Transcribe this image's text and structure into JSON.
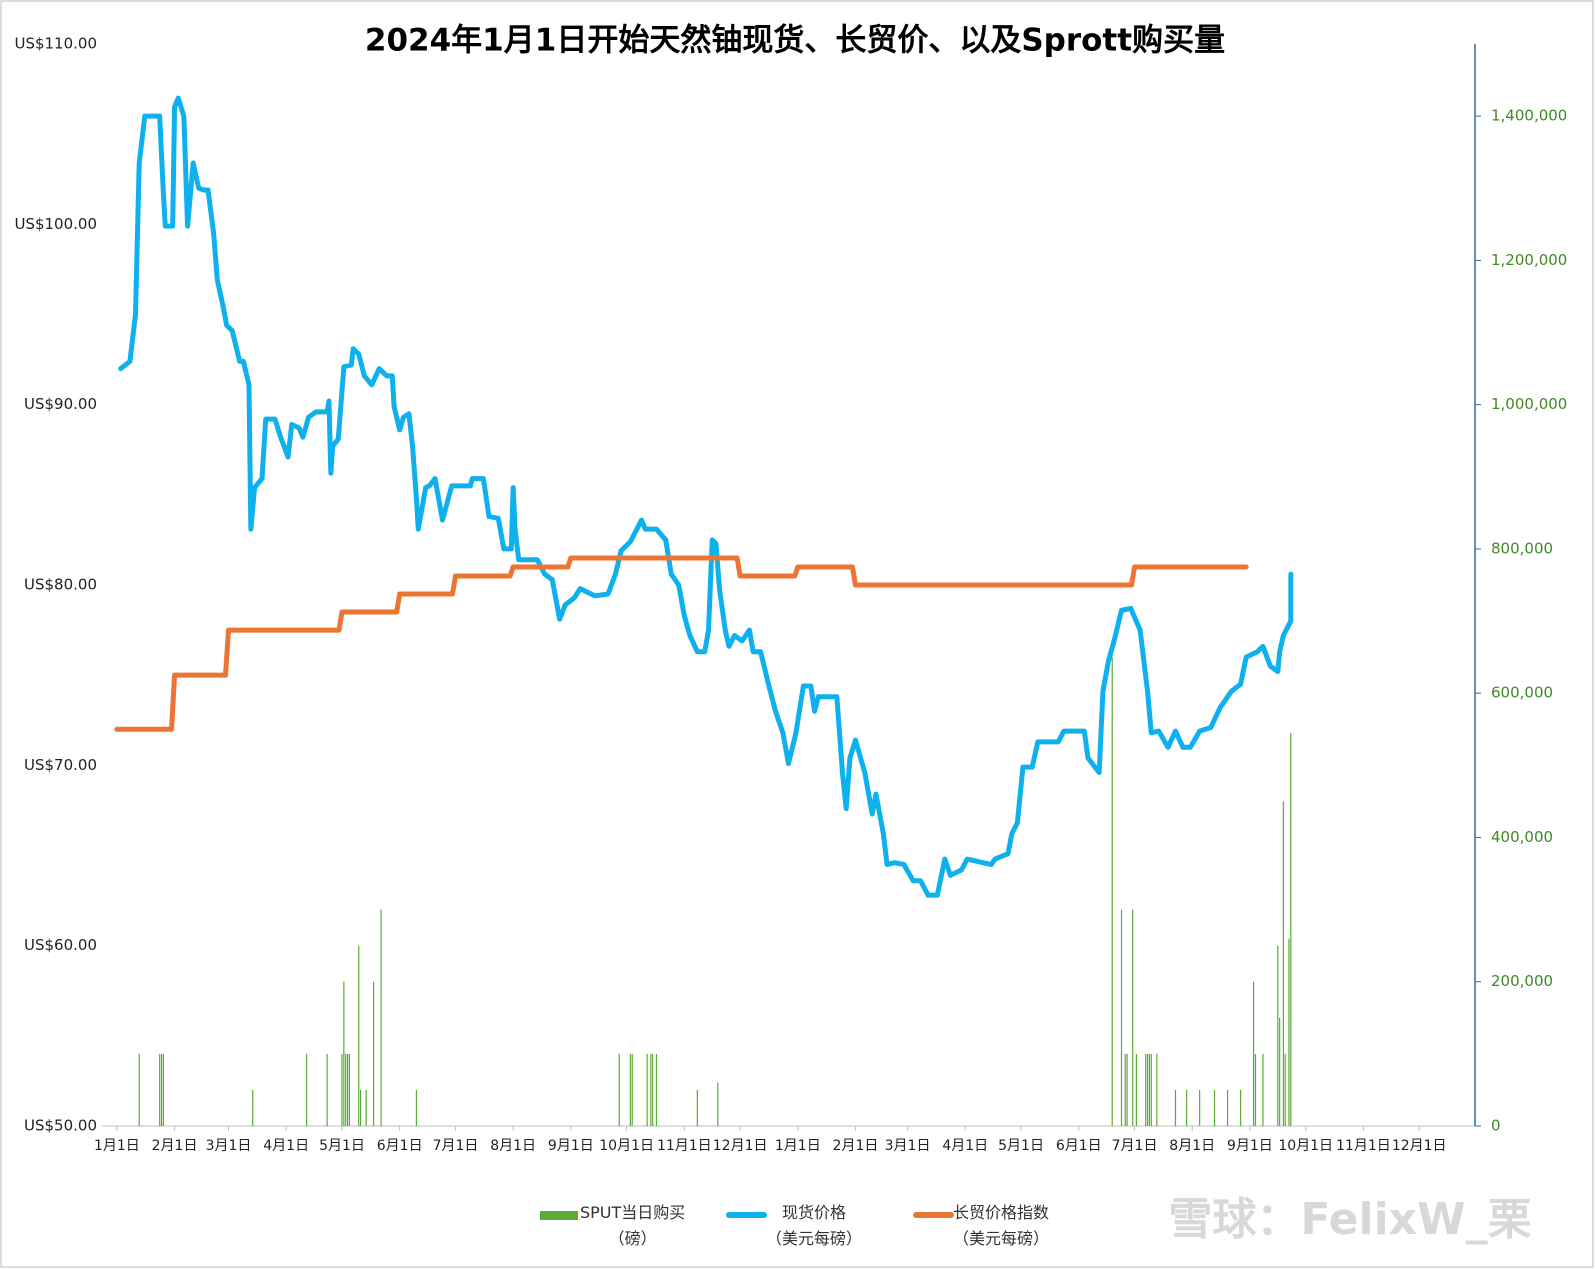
{
  "chart_data": {
    "type": "combo",
    "title": "2024年1月1日开始天然铀现货、长贸价、以及Sprott购买量",
    "watermark": "雪球：FelixW_栗",
    "xlim": [
      -8,
      730
    ],
    "xticks": [
      {
        "value": 0,
        "label": "1月1日"
      },
      {
        "value": 31,
        "label": "2月1日"
      },
      {
        "value": 60,
        "label": "3月1日"
      },
      {
        "value": 91,
        "label": "4月1日"
      },
      {
        "value": 121,
        "label": "5月1日"
      },
      {
        "value": 152,
        "label": "6月1日"
      },
      {
        "value": 182,
        "label": "7月1日"
      },
      {
        "value": 213,
        "label": "8月1日"
      },
      {
        "value": 244,
        "label": "9月1日"
      },
      {
        "value": 274,
        "label": "10月1日"
      },
      {
        "value": 305,
        "label": "11月1日"
      },
      {
        "value": 335,
        "label": "12月1日"
      },
      {
        "value": 366,
        "label": "1月1日"
      },
      {
        "value": 397,
        "label": "2月1日"
      },
      {
        "value": 425,
        "label": "3月1日"
      },
      {
        "value": 456,
        "label": "4月1日"
      },
      {
        "value": 486,
        "label": "5月1日"
      },
      {
        "value": 517,
        "label": "6月1日"
      },
      {
        "value": 547,
        "label": "7月1日"
      },
      {
        "value": 578,
        "label": "8月1日"
      },
      {
        "value": 609,
        "label": "9月1日"
      },
      {
        "value": 639,
        "label": "10月1日"
      },
      {
        "value": 670,
        "label": "11月1日"
      },
      {
        "value": 700,
        "label": "12月1日"
      }
    ],
    "ylim": [
      50,
      110
    ],
    "yticks": [
      {
        "value": 50,
        "label": "US$50.00"
      },
      {
        "value": 60,
        "label": "US$60.00"
      },
      {
        "value": 70,
        "label": "US$70.00"
      },
      {
        "value": 80,
        "label": "US$80.00"
      },
      {
        "value": 90,
        "label": "US$90.00"
      },
      {
        "value": 100,
        "label": "US$100.00"
      },
      {
        "value": 110,
        "label": "US$110.00"
      }
    ],
    "y2lim": [
      0,
      1500000
    ],
    "y2ticks": [
      0,
      {
        "value": 200000,
        "label": "200,000"
      },
      {
        "value": 400000,
        "label": "400,000"
      },
      {
        "value": 600000,
        "label": "600,000"
      },
      {
        "value": 800000,
        "label": "800,000"
      },
      {
        "value": 1000000,
        "label": "1,000,000"
      },
      {
        "value": 1200000,
        "label": "1,200,000"
      },
      {
        "value": 1400000,
        "label": "1,400,000"
      }
    ],
    "series": [
      {
        "name": "SPUT当日购买\n（磅）",
        "type": "bar",
        "axis": "y2",
        "color": "#5aac34",
        "x": [
          12,
          23,
          24,
          25,
          73,
          102,
          113,
          121,
          122,
          123,
          124,
          125,
          130,
          131,
          134,
          138,
          142,
          161,
          270,
          276,
          277,
          285,
          287,
          288,
          290,
          312,
          323,
          535,
          540,
          542,
          543,
          546,
          548,
          553,
          554,
          555,
          556,
          559,
          569,
          575,
          582,
          590,
          597,
          604,
          611,
          612,
          616,
          624,
          625,
          627,
          628,
          630,
          631
        ],
        "values": [
          100000,
          100000,
          100000,
          100000,
          50000,
          100000,
          100000,
          100000,
          200000,
          100000,
          100000,
          100000,
          250000,
          50000,
          50000,
          200000,
          300000,
          50000,
          100000,
          100000,
          100000,
          100000,
          100000,
          100000,
          100000,
          50000,
          60000,
          650000,
          300000,
          100000,
          100000,
          300000,
          100000,
          100000,
          100000,
          100000,
          100000,
          100000,
          50000,
          50000,
          50000,
          50000,
          50000,
          50000,
          200000,
          100000,
          100000,
          250000,
          150000,
          450000,
          100000,
          260000,
          545000
        ]
      },
      {
        "name": "现货价格\n（美元每磅）",
        "type": "line",
        "color": "#0fb0ee",
        "x": [
          2,
          7,
          10,
          12,
          15,
          23,
          25,
          26,
          30,
          31,
          33,
          36,
          38,
          41,
          44,
          47,
          49,
          52,
          54,
          57,
          59,
          62,
          66,
          68,
          71,
          72,
          74,
          78,
          80,
          85,
          88,
          92,
          94,
          98,
          100,
          103,
          107,
          113,
          114,
          115,
          116,
          119,
          122,
          126,
          127,
          130,
          133,
          137,
          141,
          145,
          148,
          149,
          152,
          154,
          157,
          159,
          161,
          162,
          166,
          168,
          171,
          175,
          180,
          190,
          191,
          197,
          200,
          205,
          208,
          212,
          213,
          214,
          216,
          226,
          230,
          234,
          238,
          241,
          246,
          249,
          253,
          257,
          264,
          268,
          271,
          276,
          282,
          284,
          290,
          295,
          298,
          302,
          305,
          308,
          312,
          316,
          318,
          320,
          322,
          324,
          327,
          329,
          332,
          336,
          340,
          342,
          346,
          350,
          354,
          358,
          361,
          365,
          369,
          373,
          375,
          377,
          387,
          390,
          392,
          394,
          397,
          402,
          406,
          408,
          412,
          414,
          418,
          423,
          428,
          432,
          436,
          441,
          445,
          448,
          454,
          457,
          470,
          472,
          479,
          481,
          484,
          487,
          492,
          495,
          506,
          509,
          520,
          522,
          528,
          530,
          533,
          536,
          540,
          545,
          550,
          554,
          556,
          560,
          565,
          569,
          573,
          577,
          582,
          588,
          593,
          599,
          604,
          607,
          613,
          616,
          620,
          624,
          625,
          627,
          631,
          631
        ],
        "values": [
          92.0,
          92.4,
          95.0,
          103.4,
          106.0,
          106.0,
          101.7,
          99.9,
          99.9,
          106.5,
          107.0,
          106.0,
          99.9,
          103.4,
          102.0,
          101.9,
          101.9,
          99.5,
          96.9,
          95.5,
          94.4,
          94.1,
          92.4,
          92.4,
          91.1,
          83.1,
          85.4,
          85.9,
          89.2,
          89.2,
          88.2,
          87.1,
          88.9,
          88.7,
          88.2,
          89.3,
          89.6,
          89.6,
          90.2,
          86.2,
          87.7,
          88.1,
          92.1,
          92.2,
          93.1,
          92.8,
          91.6,
          91.1,
          92.0,
          91.6,
          91.6,
          89.9,
          88.6,
          89.3,
          89.5,
          87.6,
          84.8,
          83.1,
          85.4,
          85.5,
          85.9,
          83.6,
          85.5,
          85.5,
          85.9,
          85.9,
          83.8,
          83.7,
          82.0,
          82.0,
          85.4,
          83.1,
          81.4,
          81.4,
          80.6,
          80.3,
          78.1,
          78.9,
          79.3,
          79.8,
          79.6,
          79.4,
          79.5,
          80.6,
          81.9,
          82.4,
          83.6,
          83.1,
          83.1,
          82.5,
          80.6,
          80.0,
          78.3,
          77.2,
          76.3,
          76.3,
          77.5,
          82.5,
          82.3,
          79.7,
          77.5,
          76.6,
          77.2,
          76.9,
          77.5,
          76.3,
          76.3,
          74.6,
          73.0,
          71.8,
          70.1,
          71.8,
          74.4,
          74.4,
          73.0,
          73.8,
          73.8,
          69.6,
          67.6,
          70.4,
          71.4,
          69.6,
          67.3,
          68.4,
          66.2,
          64.5,
          64.6,
          64.5,
          63.6,
          63.6,
          62.8,
          62.8,
          64.8,
          63.9,
          64.2,
          64.8,
          64.5,
          64.8,
          65.1,
          66.2,
          66.8,
          69.9,
          69.9,
          71.3,
          71.3,
          71.9,
          71.9,
          70.4,
          69.6,
          74.1,
          75.8,
          76.9,
          78.6,
          78.7,
          77.5,
          74.1,
          71.8,
          71.9,
          71.0,
          71.9,
          71.0,
          71.0,
          71.9,
          72.1,
          73.2,
          74.1,
          74.5,
          76.0,
          76.3,
          76.6,
          75.5,
          75.2,
          76.3,
          77.2,
          78.0,
          80.6
        ]
      },
      {
        "name": "长贸价格指数\n（美元每磅）",
        "type": "line",
        "step": "post",
        "color": "#ec7533",
        "x": [
          0,
          31,
          60,
          91,
          121,
          152,
          182,
          213,
          244,
          274,
          305,
          335,
          366,
          397,
          425,
          456,
          486,
          517,
          547,
          578,
          607
        ],
        "values": [
          72,
          75,
          77.5,
          77.5,
          78.5,
          79.5,
          80.5,
          81,
          81.5,
          81.5,
          81.5,
          80.5,
          81,
          80,
          80,
          80,
          80,
          80,
          81,
          81,
          81
        ]
      }
    ]
  }
}
